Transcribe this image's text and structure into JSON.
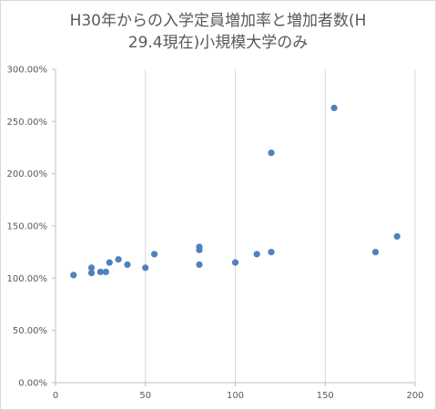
{
  "chart_data": {
    "type": "scatter",
    "title_lines": [
      "H30年からの入学定員増加率と増加者数(H",
      "29.4現在)小規模大学のみ"
    ],
    "xlabel": "",
    "ylabel": "",
    "xlim": [
      0,
      200
    ],
    "ylim": [
      0,
      3.0
    ],
    "x_ticks": [
      0,
      50,
      100,
      150,
      200
    ],
    "x_tick_labels": [
      "0",
      "50",
      "100",
      "150",
      "200"
    ],
    "y_ticks": [
      0,
      0.5,
      1.0,
      1.5,
      2.0,
      2.5,
      3.0
    ],
    "y_tick_labels": [
      "0.00%",
      "50.00%",
      "100.00%",
      "150.00%",
      "200.00%",
      "250.00%",
      "300.00%"
    ],
    "grid": "vertical",
    "legend": "none",
    "series": [
      {
        "color": "#4f81bd",
        "points": [
          {
            "x": 10,
            "y": 1.03
          },
          {
            "x": 20,
            "y": 1.1
          },
          {
            "x": 20,
            "y": 1.05
          },
          {
            "x": 25,
            "y": 1.06
          },
          {
            "x": 28,
            "y": 1.06
          },
          {
            "x": 30,
            "y": 1.15
          },
          {
            "x": 35,
            "y": 1.18
          },
          {
            "x": 40,
            "y": 1.13
          },
          {
            "x": 50,
            "y": 1.1
          },
          {
            "x": 55,
            "y": 1.23
          },
          {
            "x": 80,
            "y": 1.3
          },
          {
            "x": 80,
            "y": 1.27
          },
          {
            "x": 80,
            "y": 1.13
          },
          {
            "x": 100,
            "y": 1.15
          },
          {
            "x": 112,
            "y": 1.23
          },
          {
            "x": 120,
            "y": 1.25
          },
          {
            "x": 120,
            "y": 2.2
          },
          {
            "x": 155,
            "y": 2.63
          },
          {
            "x": 178,
            "y": 1.25
          },
          {
            "x": 190,
            "y": 1.4
          }
        ]
      }
    ]
  }
}
